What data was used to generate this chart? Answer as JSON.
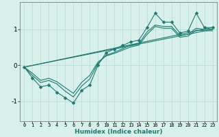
{
  "xlabel": "Humidex (Indice chaleur)",
  "ylabel": "",
  "bg_color": "#d8f0ec",
  "grid_color": "#b8ddd6",
  "line_color": "#1a7a6e",
  "xlim": [
    -0.5,
    23.5
  ],
  "ylim": [
    -1.55,
    1.75
  ],
  "yticks": [
    -1,
    0,
    1
  ],
  "xticks": [
    0,
    1,
    2,
    3,
    4,
    5,
    6,
    7,
    8,
    9,
    10,
    11,
    12,
    13,
    14,
    15,
    16,
    17,
    18,
    19,
    20,
    21,
    22,
    23
  ],
  "series": [
    {
      "x": [
        0,
        1,
        2,
        3,
        4,
        5,
        6,
        7,
        8,
        9,
        10,
        11,
        12,
        13,
        14,
        15,
        16,
        17,
        18,
        19,
        20,
        21,
        22,
        23
      ],
      "y": [
        -0.05,
        -0.35,
        -0.6,
        -0.55,
        -0.75,
        -0.9,
        -1.05,
        -0.7,
        -0.55,
        0.0,
        0.35,
        0.45,
        0.55,
        0.65,
        0.7,
        1.05,
        1.45,
        1.2,
        1.2,
        0.9,
        0.95,
        1.45,
        1.05,
        1.05
      ],
      "marker": "D",
      "markersize": 2.5,
      "lw": 0.8
    },
    {
      "x": [
        0,
        1,
        2,
        3,
        4,
        5,
        6,
        7,
        8,
        9,
        10,
        11,
        12,
        13,
        14,
        15,
        16,
        17,
        18,
        19,
        20,
        21,
        22,
        23
      ],
      "y": [
        -0.05,
        -0.28,
        -0.48,
        -0.42,
        -0.52,
        -0.72,
        -0.88,
        -0.58,
        -0.38,
        0.05,
        0.28,
        0.36,
        0.46,
        0.56,
        0.6,
        0.93,
        1.12,
        1.08,
        1.08,
        0.83,
        0.86,
        1.03,
        1.0,
        1.0
      ],
      "marker": null,
      "markersize": 0,
      "lw": 0.8
    },
    {
      "x": [
        0,
        1,
        2,
        3,
        4,
        5,
        6,
        7,
        8,
        9,
        10,
        11,
        12,
        13,
        14,
        15,
        16,
        17,
        18,
        19,
        20,
        21,
        22,
        23
      ],
      "y": [
        -0.05,
        -0.22,
        -0.42,
        -0.36,
        -0.46,
        -0.62,
        -0.78,
        -0.48,
        -0.28,
        0.09,
        0.26,
        0.33,
        0.42,
        0.51,
        0.56,
        0.86,
        1.08,
        1.03,
        1.03,
        0.78,
        0.81,
        0.98,
        0.96,
        0.96
      ],
      "marker": null,
      "markersize": 0,
      "lw": 0.8
    },
    {
      "x": [
        0,
        23
      ],
      "y": [
        -0.05,
        1.05
      ],
      "marker": null,
      "markersize": 0,
      "lw": 0.8
    },
    {
      "x": [
        0,
        23
      ],
      "y": [
        -0.05,
        1.0
      ],
      "marker": null,
      "markersize": 0,
      "lw": 0.8
    }
  ]
}
